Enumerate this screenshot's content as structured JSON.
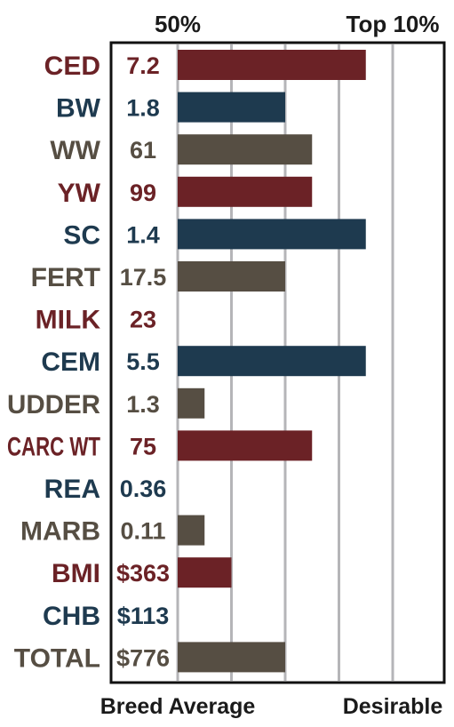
{
  "colors": {
    "red": "#6b2226",
    "blue": "#1e3a4f",
    "brown": "#564e43",
    "grid": "#b5b5b8",
    "frame": "#111111"
  },
  "chart_data": {
    "type": "bar",
    "orientation": "horizontal",
    "scale": "percentile steps (0 = breed average, 5 = Top 10%)",
    "xlim": [
      0,
      5
    ],
    "top_labels": [
      "50%",
      "Top 10%"
    ],
    "bottom_labels": [
      "Breed Average",
      "Desirable"
    ],
    "rows": [
      {
        "label": "CED",
        "value": "7.2",
        "bar": 3.5,
        "color": "red"
      },
      {
        "label": "BW",
        "value": "1.8",
        "bar": 2.0,
        "color": "blue"
      },
      {
        "label": "WW",
        "value": "61",
        "bar": 2.5,
        "color": "brown"
      },
      {
        "label": "YW",
        "value": "99",
        "bar": 2.5,
        "color": "red"
      },
      {
        "label": "SC",
        "value": "1.4",
        "bar": 3.5,
        "color": "blue"
      },
      {
        "label": "FERT",
        "value": "17.5",
        "bar": 2.0,
        "color": "brown"
      },
      {
        "label": "MILK",
        "value": "23",
        "bar": 0,
        "color": "red"
      },
      {
        "label": "CEM",
        "value": "5.5",
        "bar": 3.5,
        "color": "blue"
      },
      {
        "label": "UDDER",
        "value": "1.3",
        "bar": 0.5,
        "color": "brown"
      },
      {
        "label": "CARC WT",
        "value": "75",
        "bar": 2.5,
        "color": "red"
      },
      {
        "label": "REA",
        "value": "0.36",
        "bar": 0,
        "color": "blue"
      },
      {
        "label": "MARB",
        "value": "0.11",
        "bar": 0.5,
        "color": "brown"
      },
      {
        "label": "BMI",
        "value": "$363",
        "bar": 1.0,
        "color": "red"
      },
      {
        "label": "CHB",
        "value": "$113",
        "bar": 0,
        "color": "blue"
      },
      {
        "label": "TOTAL",
        "value": "$776",
        "bar": 2.0,
        "color": "brown"
      }
    ]
  }
}
